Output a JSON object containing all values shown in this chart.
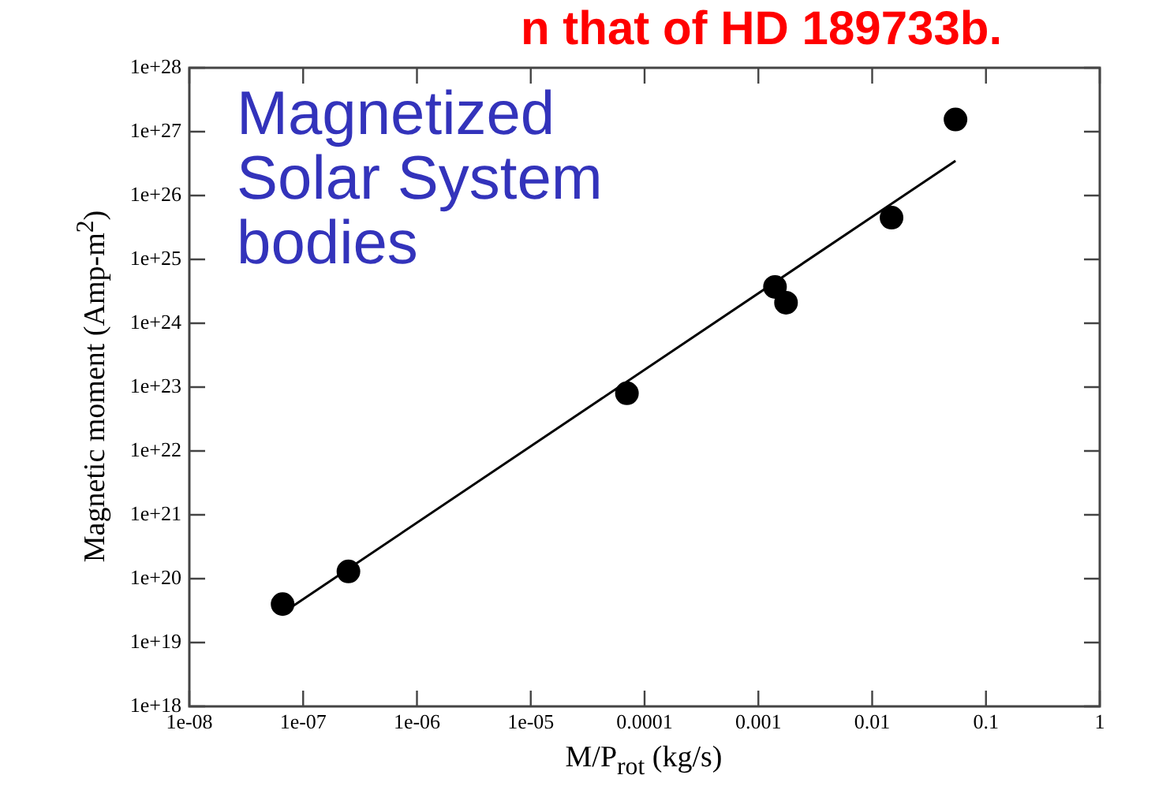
{
  "chart_data": {
    "type": "scatter",
    "xlabel": "M/P$_{rot}$ (kg/s)",
    "ylabel": "Magnetic moment (Amp-m$^{2}$)",
    "annotations": [
      "Magnetized Solar System bodies",
      "n that of HD 189733b."
    ],
    "log": "xy",
    "xlim": [
      1e-08,
      1
    ],
    "ylim": [
      1e+18,
      1e+28
    ],
    "xticks": [
      {
        "value": 1e-08,
        "label": "1e-08"
      },
      {
        "value": 1e-07,
        "label": "1e-07"
      },
      {
        "value": 1e-06,
        "label": "1e-06"
      },
      {
        "value": 1e-05,
        "label": "1e-05"
      },
      0.0001,
      0.001,
      0.01,
      0.1,
      1
    ],
    "yticks": [
      {
        "value": 1e+18,
        "label": "1e+18"
      },
      {
        "value": 1e+19,
        "label": "1e+19"
      },
      {
        "value": 1e+20,
        "label": "1e+20"
      },
      {
        "value": 1e+21,
        "label": "1e+21"
      },
      {
        "value": 1e+22,
        "label": "1e+22"
      },
      {
        "value": 1e+23,
        "label": "1e+23"
      },
      {
        "value": 1e+24,
        "label": "1e+24"
      },
      {
        "value": 1e+25,
        "label": "1e+25"
      },
      {
        "value": 1e+26,
        "label": "1e+26"
      },
      {
        "value": 1e+27,
        "label": "1e+27"
      },
      {
        "value": 1e+28,
        "label": "1e+28"
      }
    ],
    "marker": "circle",
    "series": [
      {
        "color": "#000000",
        "x": [
          6.6e-08,
          2.5e-07,
          7e-05,
          0.0014,
          0.00175,
          0.0148,
          0.054
        ],
        "values": [
          4e+19,
          1.3e+20,
          8e+22,
          3.7e+24,
          2.1e+24,
          4.5e+25,
          1.55e+27
        ]
      },
      {
        "type": "line",
        "color": "#000000",
        "marker": "none",
        "x": [
          6.6e-08,
          0.054
        ],
        "values": [
          2.9e+19,
          3.5e+26
        ]
      }
    ]
  }
}
